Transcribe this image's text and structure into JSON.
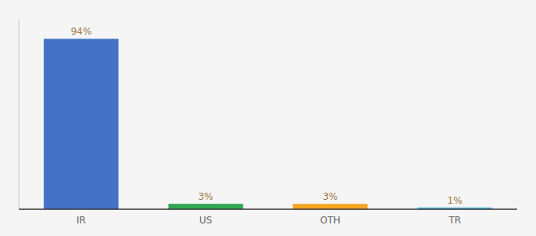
{
  "chart_data": {
    "type": "bar",
    "categories": [
      "IR",
      "US",
      "OTH",
      "TR"
    ],
    "values": [
      94,
      3,
      3,
      1
    ],
    "value_labels": [
      "94%",
      "3%",
      "3%",
      "1%"
    ],
    "data_labels": true,
    "colors": [
      "#4472c4",
      "#33a853",
      "#f5a623",
      "#56b9e8"
    ],
    "ylim": [
      0,
      105
    ],
    "grid": false,
    "tick_labels": "x"
  }
}
